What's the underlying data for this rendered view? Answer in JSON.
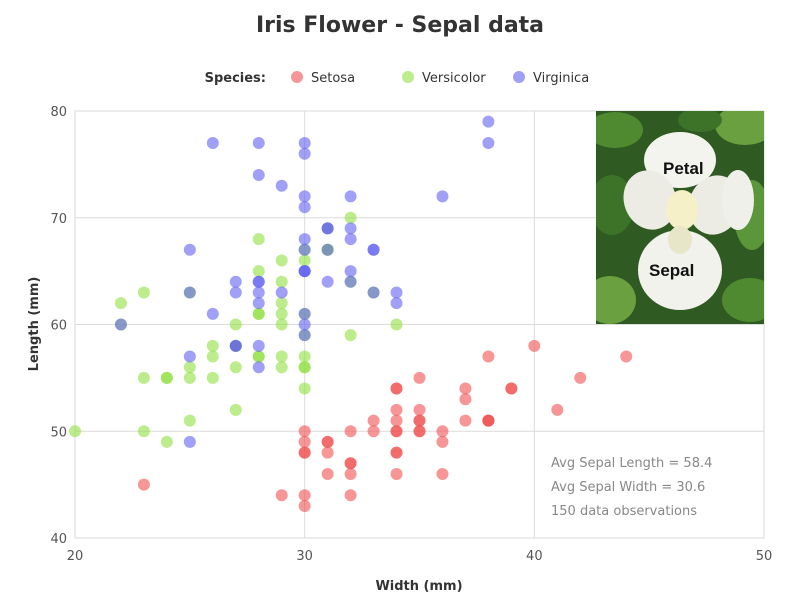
{
  "chart_data": {
    "type": "scatter",
    "title": "Iris Flower - Sepal data",
    "xlabel": "Width (mm)",
    "ylabel": "Length (mm)",
    "xlim": [
      20,
      50
    ],
    "ylim": [
      40,
      80
    ],
    "x_ticks": [
      "20",
      "30",
      "40",
      "50"
    ],
    "y_ticks": [
      "40",
      "50",
      "60",
      "70",
      "80"
    ],
    "grid": true,
    "legend": {
      "title": "Species:",
      "placement": "top-center"
    },
    "series": [
      {
        "name": "Setosa",
        "color": "#f05050",
        "points": [
          [
            35,
            51
          ],
          [
            30,
            49
          ],
          [
            32,
            47
          ],
          [
            31,
            46
          ],
          [
            36,
            50
          ],
          [
            39,
            54
          ],
          [
            34,
            46
          ],
          [
            34,
            50
          ],
          [
            29,
            44
          ],
          [
            31,
            49
          ],
          [
            37,
            54
          ],
          [
            34,
            48
          ],
          [
            30,
            48
          ],
          [
            30,
            43
          ],
          [
            40,
            58
          ],
          [
            44,
            57
          ],
          [
            39,
            54
          ],
          [
            35,
            51
          ],
          [
            38,
            57
          ],
          [
            38,
            51
          ],
          [
            34,
            54
          ],
          [
            37,
            51
          ],
          [
            36,
            46
          ],
          [
            33,
            51
          ],
          [
            34,
            48
          ],
          [
            30,
            50
          ],
          [
            34,
            50
          ],
          [
            35,
            52
          ],
          [
            34,
            52
          ],
          [
            32,
            47
          ],
          [
            31,
            48
          ],
          [
            34,
            54
          ],
          [
            41,
            52
          ],
          [
            42,
            55
          ],
          [
            31,
            49
          ],
          [
            32,
            50
          ],
          [
            35,
            55
          ],
          [
            36,
            49
          ],
          [
            30,
            44
          ],
          [
            34,
            51
          ],
          [
            35,
            50
          ],
          [
            23,
            45
          ],
          [
            32,
            44
          ],
          [
            35,
            50
          ],
          [
            38,
            51
          ],
          [
            30,
            48
          ],
          [
            38,
            51
          ],
          [
            32,
            46
          ],
          [
            37,
            53
          ],
          [
            33,
            50
          ]
        ]
      },
      {
        "name": "Versicolor",
        "color": "#90e040",
        "points": [
          [
            32,
            70
          ],
          [
            32,
            64
          ],
          [
            31,
            69
          ],
          [
            23,
            55
          ],
          [
            28,
            65
          ],
          [
            28,
            57
          ],
          [
            33,
            63
          ],
          [
            24,
            49
          ],
          [
            29,
            66
          ],
          [
            27,
            52
          ],
          [
            20,
            50
          ],
          [
            30,
            59
          ],
          [
            22,
            60
          ],
          [
            29,
            61
          ],
          [
            29,
            56
          ],
          [
            31,
            67
          ],
          [
            30,
            56
          ],
          [
            27,
            58
          ],
          [
            22,
            62
          ],
          [
            25,
            56
          ],
          [
            32,
            59
          ],
          [
            28,
            61
          ],
          [
            25,
            63
          ],
          [
            28,
            61
          ],
          [
            29,
            64
          ],
          [
            30,
            66
          ],
          [
            28,
            68
          ],
          [
            30,
            67
          ],
          [
            29,
            60
          ],
          [
            26,
            57
          ],
          [
            24,
            55
          ],
          [
            24,
            55
          ],
          [
            27,
            58
          ],
          [
            27,
            60
          ],
          [
            30,
            54
          ],
          [
            34,
            60
          ],
          [
            31,
            67
          ],
          [
            23,
            63
          ],
          [
            30,
            56
          ],
          [
            25,
            55
          ],
          [
            26,
            55
          ],
          [
            30,
            61
          ],
          [
            26,
            58
          ],
          [
            23,
            50
          ],
          [
            27,
            56
          ],
          [
            30,
            57
          ],
          [
            29,
            57
          ],
          [
            29,
            62
          ],
          [
            25,
            51
          ],
          [
            28,
            57
          ]
        ]
      },
      {
        "name": "Virginica",
        "color": "#6060f0",
        "points": [
          [
            33,
            63
          ],
          [
            27,
            58
          ],
          [
            30,
            71
          ],
          [
            29,
            63
          ],
          [
            30,
            65
          ],
          [
            30,
            76
          ],
          [
            25,
            49
          ],
          [
            29,
            73
          ],
          [
            25,
            67
          ],
          [
            36,
            72
          ],
          [
            32,
            65
          ],
          [
            27,
            64
          ],
          [
            30,
            68
          ],
          [
            25,
            57
          ],
          [
            28,
            58
          ],
          [
            32,
            64
          ],
          [
            30,
            65
          ],
          [
            38,
            77
          ],
          [
            26,
            77
          ],
          [
            22,
            60
          ],
          [
            32,
            69
          ],
          [
            28,
            56
          ],
          [
            28,
            77
          ],
          [
            27,
            63
          ],
          [
            33,
            67
          ],
          [
            32,
            72
          ],
          [
            28,
            62
          ],
          [
            30,
            61
          ],
          [
            28,
            64
          ],
          [
            30,
            72
          ],
          [
            28,
            74
          ],
          [
            38,
            79
          ],
          [
            28,
            64
          ],
          [
            28,
            63
          ],
          [
            26,
            61
          ],
          [
            30,
            77
          ],
          [
            34,
            63
          ],
          [
            31,
            64
          ],
          [
            30,
            60
          ],
          [
            31,
            69
          ],
          [
            31,
            67
          ],
          [
            31,
            69
          ],
          [
            27,
            58
          ],
          [
            32,
            68
          ],
          [
            33,
            67
          ],
          [
            30,
            67
          ],
          [
            25,
            63
          ],
          [
            30,
            65
          ],
          [
            34,
            62
          ],
          [
            30,
            59
          ]
        ]
      }
    ],
    "annotations": [
      "Avg Sepal Length = 58.4",
      "Avg Sepal Width = 30.6",
      "150 data observations"
    ],
    "inset_image": {
      "labels": [
        "Petal",
        "Sepal"
      ]
    }
  }
}
